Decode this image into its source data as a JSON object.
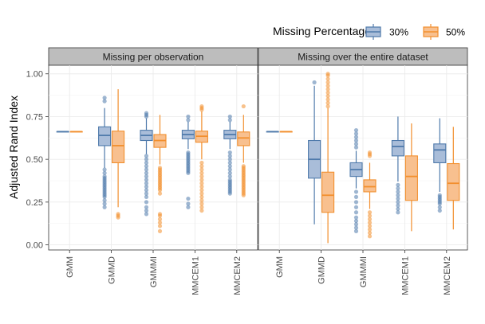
{
  "legend": {
    "title": "Missing Percentage",
    "placement": "top-right",
    "items": [
      {
        "label": "30%",
        "fill": "#a9bdd9",
        "stroke": "#4f7aab"
      },
      {
        "label": "50%",
        "fill": "#f8c08f",
        "stroke": "#f28f2e"
      }
    ]
  },
  "chart_data": {
    "type": "boxplot",
    "ylabel": "Adjusted Rand Index",
    "ylim": [
      -0.03,
      1.05
    ],
    "yticks": [
      "0.00",
      "0.25",
      "0.50",
      "0.75",
      "1.00"
    ],
    "ytick_values": [
      0,
      0.25,
      0.5,
      0.75,
      1.0
    ],
    "grid": true,
    "categories": [
      "GMM",
      "GMMD",
      "GMMMI",
      "MMCEM1",
      "MMCEM2"
    ],
    "panels": [
      {
        "title": "Missing per observation",
        "boxes": {
          "30%": [
            {
              "category": "GMM",
              "q1": 0.662,
              "median": 0.662,
              "q3": 0.662,
              "whisker_low": 0.662,
              "whisker_high": 0.662,
              "outliers": []
            },
            {
              "category": "GMMD",
              "q1": 0.58,
              "median": 0.64,
              "q3": 0.69,
              "whisker_low": 0.45,
              "whisker_high": 0.8,
              "outliers": [
                0.86,
                0.84,
                0.44,
                0.42,
                0.4,
                0.39,
                0.38,
                0.37,
                0.36,
                0.35,
                0.34,
                0.33,
                0.32,
                0.31,
                0.3,
                0.29,
                0.28,
                0.26,
                0.24,
                0.22
              ]
            },
            {
              "category": "GMMMI",
              "q1": 0.61,
              "median": 0.64,
              "q3": 0.67,
              "whisker_low": 0.53,
              "whisker_high": 0.74,
              "outliers": [
                0.77,
                0.76,
                0.75,
                0.52,
                0.5,
                0.48,
                0.46,
                0.44,
                0.42,
                0.4,
                0.38,
                0.36,
                0.34,
                0.32,
                0.3,
                0.28,
                0.25,
                0.22,
                0.2,
                0.18
              ]
            },
            {
              "category": "MMCEM1",
              "q1": 0.62,
              "median": 0.645,
              "q3": 0.67,
              "whisker_low": 0.56,
              "whisker_high": 0.72,
              "outliers": [
                0.75,
                0.73,
                0.54,
                0.53,
                0.52,
                0.51,
                0.5,
                0.49,
                0.48,
                0.47,
                0.46,
                0.45,
                0.44,
                0.43,
                0.42,
                0.27,
                0.24,
                0.22
              ]
            },
            {
              "category": "MMCEM2",
              "q1": 0.62,
              "median": 0.645,
              "q3": 0.67,
              "whisker_low": 0.56,
              "whisker_high": 0.72,
              "outliers": [
                0.75,
                0.73,
                0.54,
                0.52,
                0.5,
                0.48,
                0.46,
                0.44,
                0.42,
                0.4,
                0.38,
                0.37,
                0.36,
                0.35,
                0.34,
                0.33,
                0.32,
                0.31,
                0.3
              ]
            }
          ],
          "50%": [
            {
              "category": "GMM",
              "q1": 0.662,
              "median": 0.662,
              "q3": 0.662,
              "whisker_low": 0.662,
              "whisker_high": 0.662,
              "outliers": []
            },
            {
              "category": "GMMD",
              "q1": 0.48,
              "median": 0.58,
              "q3": 0.665,
              "whisker_low": 0.22,
              "whisker_high": 0.91,
              "outliers": [
                0.18,
                0.17,
                0.16
              ]
            },
            {
              "category": "GMMMI",
              "q1": 0.57,
              "median": 0.61,
              "q3": 0.645,
              "whisker_low": 0.47,
              "whisker_high": 0.76,
              "outliers": [
                0.45,
                0.44,
                0.43,
                0.42,
                0.41,
                0.4,
                0.39,
                0.38,
                0.37,
                0.36,
                0.35,
                0.34,
                0.33,
                0.32,
                0.3,
                0.18,
                0.17,
                0.15,
                0.13,
                0.11,
                0.08
              ]
            },
            {
              "category": "MMCEM1",
              "q1": 0.6,
              "median": 0.635,
              "q3": 0.665,
              "whisker_low": 0.5,
              "whisker_high": 0.78,
              "outliers": [
                0.81,
                0.8,
                0.79,
                0.48,
                0.46,
                0.44,
                0.42,
                0.4,
                0.38,
                0.36,
                0.34,
                0.32,
                0.3,
                0.28,
                0.26,
                0.24,
                0.22,
                0.2
              ]
            },
            {
              "category": "MMCEM2",
              "q1": 0.58,
              "median": 0.625,
              "q3": 0.66,
              "whisker_low": 0.48,
              "whisker_high": 0.76,
              "outliers": [
                0.81,
                0.46,
                0.45,
                0.44,
                0.43,
                0.42,
                0.41,
                0.4,
                0.39,
                0.38,
                0.37,
                0.36,
                0.35,
                0.34,
                0.33,
                0.32,
                0.31,
                0.3,
                0.29
              ]
            }
          ]
        }
      },
      {
        "title": "Missing over the entire dataset",
        "boxes": {
          "30%": [
            {
              "category": "GMM",
              "q1": 0.662,
              "median": 0.662,
              "q3": 0.662,
              "whisker_low": 0.662,
              "whisker_high": 0.662,
              "outliers": []
            },
            {
              "category": "GMMD",
              "q1": 0.39,
              "median": 0.5,
              "q3": 0.61,
              "whisker_low": 0.12,
              "whisker_high": 0.93,
              "outliers": [
                0.95
              ]
            },
            {
              "category": "GMMMI",
              "q1": 0.4,
              "median": 0.44,
              "q3": 0.48,
              "whisker_low": 0.33,
              "whisker_high": 0.55,
              "outliers": [
                0.67,
                0.65,
                0.63,
                0.61,
                0.59,
                0.57,
                0.31,
                0.28,
                0.25,
                0.22,
                0.19,
                0.16,
                0.14,
                0.12,
                0.1,
                0.08
              ]
            },
            {
              "category": "MMCEM1",
              "q1": 0.52,
              "median": 0.575,
              "q3": 0.61,
              "whisker_low": 0.37,
              "whisker_high": 0.75,
              "outliers": [
                0.35,
                0.33,
                0.31,
                0.29,
                0.27,
                0.25,
                0.23,
                0.21,
                0.19
              ]
            },
            {
              "category": "MMCEM2",
              "q1": 0.48,
              "median": 0.555,
              "q3": 0.59,
              "whisker_low": 0.31,
              "whisker_high": 0.74,
              "outliers": [
                0.29,
                0.28,
                0.27,
                0.26,
                0.25,
                0.24,
                0.22,
                0.2
              ]
            }
          ],
          "50%": [
            {
              "category": "GMM",
              "q1": 0.662,
              "median": 0.662,
              "q3": 0.662,
              "whisker_low": 0.662,
              "whisker_high": 0.662,
              "outliers": []
            },
            {
              "category": "GMMD",
              "q1": 0.19,
              "median": 0.29,
              "q3": 0.425,
              "whisker_low": 0.01,
              "whisker_high": 0.8,
              "outliers": [
                1.0,
                0.99,
                0.97,
                0.95,
                0.93,
                0.91,
                0.89,
                0.87,
                0.85,
                0.83,
                0.81
              ]
            },
            {
              "category": "GMMMI",
              "q1": 0.31,
              "median": 0.34,
              "q3": 0.38,
              "whisker_low": 0.21,
              "whisker_high": 0.48,
              "outliers": [
                0.54,
                0.53,
                0.52,
                0.19,
                0.17,
                0.15,
                0.13,
                0.11,
                0.09,
                0.07,
                0.05
              ]
            },
            {
              "category": "MMCEM1",
              "q1": 0.26,
              "median": 0.4,
              "q3": 0.52,
              "whisker_low": 0.08,
              "whisker_high": 0.71,
              "outliers": []
            },
            {
              "category": "MMCEM2",
              "q1": 0.26,
              "median": 0.36,
              "q3": 0.475,
              "whisker_low": 0.09,
              "whisker_high": 0.69,
              "outliers": []
            }
          ]
        }
      }
    ]
  }
}
